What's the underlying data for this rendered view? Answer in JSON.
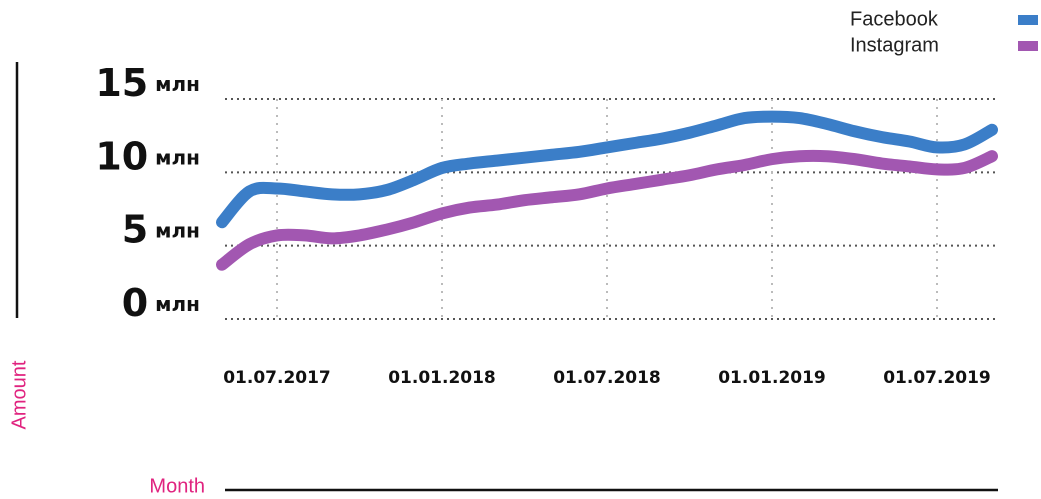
{
  "chart_data": {
    "type": "line",
    "x_label": "Month",
    "y_label": "Amount",
    "x": [
      "01.05.2017",
      "01.06.2017",
      "01.07.2017",
      "01.08.2017",
      "01.09.2017",
      "01.10.2017",
      "01.11.2017",
      "01.12.2017",
      "01.01.2018",
      "01.02.2018",
      "01.03.2018",
      "01.04.2018",
      "01.05.2018",
      "01.06.2018",
      "01.07.2018",
      "01.08.2018",
      "01.09.2018",
      "01.10.2018",
      "01.11.2018",
      "01.12.2018",
      "01.01.2019",
      "01.02.2019",
      "01.03.2019",
      "01.04.2019",
      "01.05.2019",
      "01.06.2019",
      "01.07.2019",
      "01.08.2019",
      "01.09.2019"
    ],
    "series": [
      {
        "name": "Facebook",
        "color": "#3b7ec8",
        "values": [
          6.6,
          8.7,
          8.9,
          8.7,
          8.5,
          8.5,
          8.8,
          9.5,
          10.3,
          10.6,
          10.8,
          11.0,
          11.2,
          11.4,
          11.7,
          12.0,
          12.3,
          12.7,
          13.2,
          13.7,
          13.8,
          13.7,
          13.3,
          12.8,
          12.4,
          12.1,
          11.7,
          11.9,
          12.9
        ]
      },
      {
        "name": "Instagram",
        "color": "#a257b1",
        "values": [
          3.7,
          5.1,
          5.7,
          5.7,
          5.5,
          5.7,
          6.1,
          6.6,
          7.2,
          7.6,
          7.8,
          8.1,
          8.3,
          8.5,
          8.9,
          9.2,
          9.5,
          9.8,
          10.2,
          10.5,
          10.9,
          11.1,
          11.1,
          10.9,
          10.6,
          10.4,
          10.2,
          10.3,
          11.1
        ]
      }
    ],
    "xlim": [
      "01.05.2017",
      "01.09.2019"
    ],
    "xticks": [
      "01.07.2017",
      "01.01.2018",
      "01.07.2018",
      "01.01.2019",
      "01.07.2019"
    ],
    "ylim": [
      0,
      15
    ],
    "yticks": [
      {
        "value": 0,
        "label": "0 млн"
      },
      {
        "value": 5,
        "label": "5 млн"
      },
      {
        "value": 10,
        "label": "10 млн"
      },
      {
        "value": 15,
        "label": "15 млн"
      }
    ],
    "grid": true,
    "legend": "top-right"
  }
}
